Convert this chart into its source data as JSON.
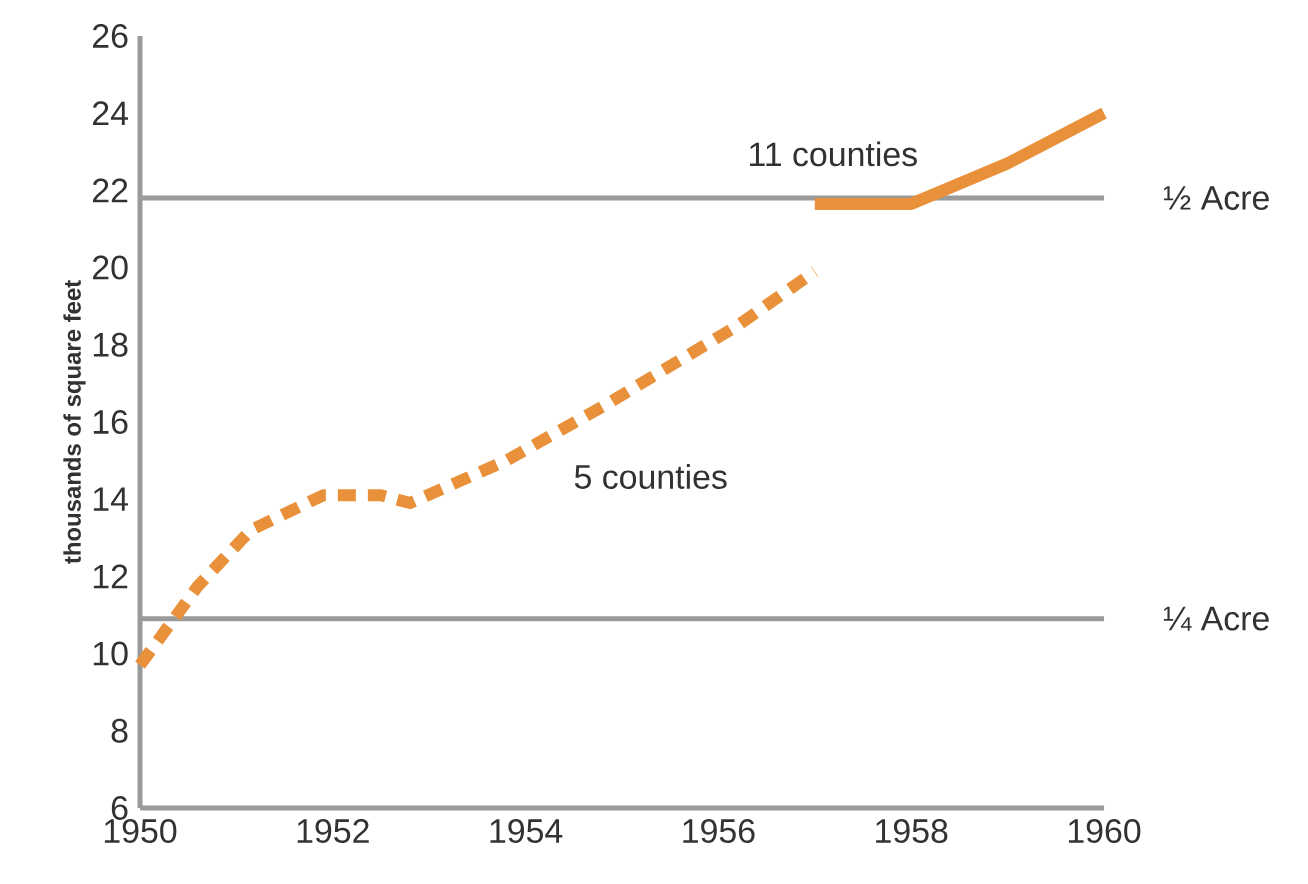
{
  "chart_data": {
    "type": "line",
    "ylabel": "thousands of square feet",
    "xlim": [
      1950,
      1960
    ],
    "xticks": [
      1950,
      1952,
      1954,
      1956,
      1958,
      1960
    ],
    "ylim": [
      6,
      26
    ],
    "yticks": [
      6,
      8,
      10,
      12,
      14,
      16,
      18,
      20,
      22,
      24,
      26
    ],
    "series": [
      {
        "name": "5 counties",
        "color": "#e8913a",
        "line_style": "dashed",
        "x": [
          1950,
          1950.6,
          1951.15,
          1951.9,
          1952.5,
          1952.8,
          1953.8,
          1954.8,
          1955.4,
          1956.2,
          1957
        ],
        "values": [
          9.7,
          11.75,
          13.2,
          14.1,
          14.1,
          13.9,
          15.0,
          16.4,
          17.3,
          18.5,
          19.9
        ]
      },
      {
        "name": "11 counties",
        "color": "#e8913a",
        "line_style": "solid",
        "x": [
          1957,
          1958,
          1959,
          1960
        ],
        "values": [
          21.65,
          21.65,
          22.7,
          24.0
        ]
      }
    ],
    "ref_lines": [
      {
        "axis": "y",
        "value": 21.8,
        "label": "½ Acre",
        "color": "#9a9a9a"
      },
      {
        "axis": "y",
        "value": 10.9,
        "label": "¼ Acre",
        "color": "#9a9a9a"
      }
    ]
  }
}
